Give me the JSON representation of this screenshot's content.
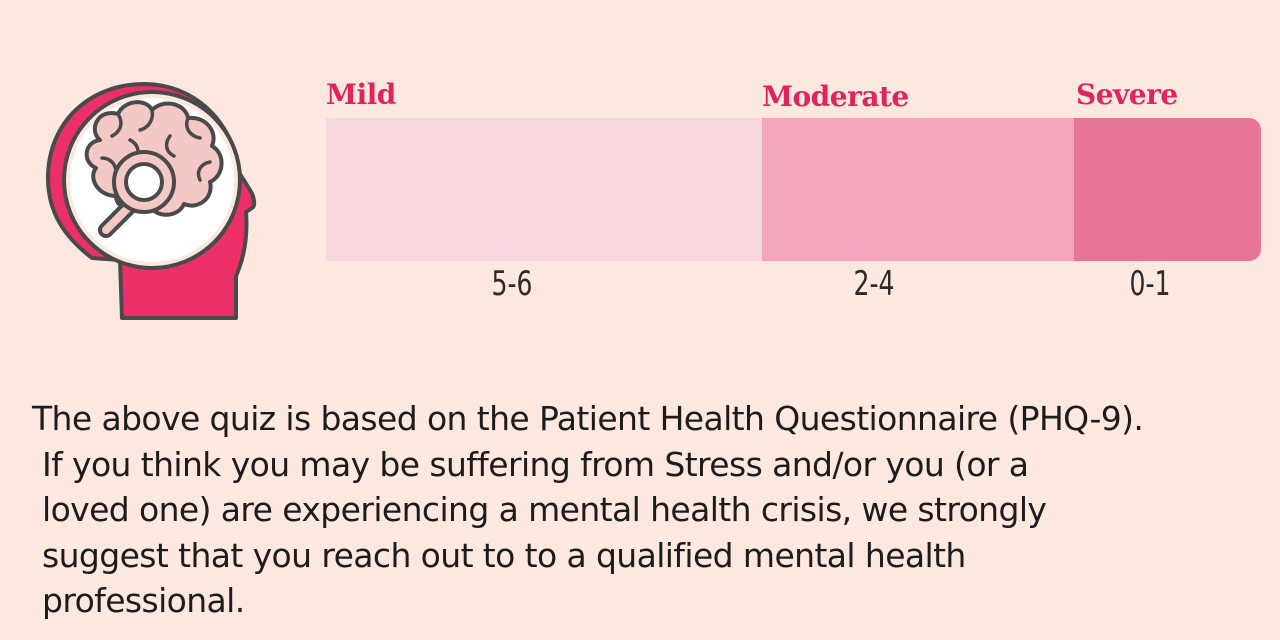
{
  "colors": {
    "background": "#fde8e0",
    "label": "#e0245e",
    "mild": "#f7d7df",
    "moderate": "#f3a5bd",
    "severe": "#e67598",
    "icon_accent": "#ec2f69",
    "icon_brain": "#f4c8c4",
    "icon_outline": "#4a4a4a"
  },
  "icon": {
    "name": "head-brain-magnifier-icon"
  },
  "scale": {
    "levels": [
      {
        "label": "Mild",
        "range": "5-6",
        "color": "#f7d7df"
      },
      {
        "label": "Moderate",
        "range": "2-4",
        "color": "#f3a5bd"
      },
      {
        "label": "Severe",
        "range": "0-1",
        "color": "#e67598"
      }
    ]
  },
  "disclaimer": {
    "lines": [
      "The above quiz is based on the Patient Health Questionnaire (PHQ-9).",
      "If you think you may be suffering from Stress and/or you (or a",
      "loved one) are experiencing a mental health crisis, we strongly",
      "suggest that you reach out to to a qualified mental health",
      "professional."
    ]
  }
}
